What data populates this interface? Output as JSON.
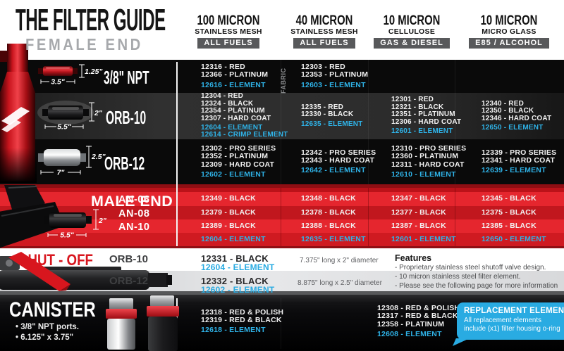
{
  "header": {
    "title": "THE FILTER GUIDE",
    "section_label": "FEMALE END",
    "columns": [
      {
        "name": "100 MICRON",
        "material": "STAINLESS MESH",
        "badge": "ALL FUELS"
      },
      {
        "name": "40 MICRON",
        "material": "STAINLESS MESH",
        "badge": "ALL FUELS"
      },
      {
        "name": "10 MICRON",
        "material": "CELLULOSE",
        "badge": "GAS & DIESEL"
      },
      {
        "name": "10 MICRON",
        "material": "MICRO GLASS",
        "badge": "E85 / ALCOHOL"
      }
    ]
  },
  "female_end": {
    "rows": [
      {
        "label": "3/8\" NPT",
        "dim_h": "1.25\"",
        "dim_l": "3.5\"",
        "cells": [
          {
            "parts": [
              "12316 - RED",
              "12366 - PLATINUM"
            ],
            "elements": [
              "12616 - ELEMENT"
            ]
          },
          {
            "note": "FABRIC",
            "parts": [
              "12303 - RED",
              "12353 - PLATINUM"
            ],
            "elements": [
              "12603 - ELEMENT"
            ]
          },
          {
            "parts": [],
            "elements": []
          },
          {
            "parts": [],
            "elements": []
          }
        ]
      },
      {
        "label": "ORB-10",
        "dim_h": "2\"",
        "dim_l": "5.5\"",
        "cells": [
          {
            "parts": [
              "12304 - RED",
              "12324 - BLACK",
              "12354 - PLATINUM",
              "12307 - HARD COAT"
            ],
            "elements": [
              "12604 - ELEMENT",
              "12614 - CRIMP ELEMENT"
            ]
          },
          {
            "parts": [
              "12335 - RED",
              "12330 - BLACK"
            ],
            "elements": [
              "12635 - ELEMENT"
            ]
          },
          {
            "parts": [
              "12301 - RED",
              "12321 - BLACK",
              "12351 - PLATINUM",
              "12306 - HARD COAT"
            ],
            "elements": [
              "12601 - ELEMENT"
            ]
          },
          {
            "parts": [
              "12340 - RED",
              "12350 - BLACK",
              "12346 - HARD COAT"
            ],
            "elements": [
              "12650 - ELEMENT"
            ]
          }
        ]
      },
      {
        "label": "ORB-12",
        "dim_h": "2.5\"",
        "dim_l": "7\"",
        "cells": [
          {
            "parts": [
              "12302 - PRO SERIES",
              "12352 - PLATINUM",
              "12309 - HARD COAT"
            ],
            "elements": [
              "12602 - ELEMENT"
            ]
          },
          {
            "parts": [
              "12342 - PRO SERIES",
              "12343 - HARD COAT"
            ],
            "elements": [
              "12642 - ELEMENT"
            ]
          },
          {
            "parts": [
              "12310 - PRO SERIES",
              "12360 - PLATINUM",
              "12311 - HARD COAT"
            ],
            "elements": [
              "12610 - ELEMENT"
            ]
          },
          {
            "parts": [
              "12339 - PRO SERIES",
              "12341 - HARD COAT"
            ],
            "elements": [
              "12639 - ELEMENT"
            ]
          }
        ]
      }
    ]
  },
  "male_end": {
    "label": "MALE END",
    "dim_h": "2\"",
    "dim_l": "5.5\"",
    "rows": [
      {
        "label": "AN-06",
        "cells": [
          "12349 - BLACK",
          "12348 - BLACK",
          "12347 - BLACK",
          "12345 - BLACK"
        ]
      },
      {
        "label": "AN-08",
        "cells": [
          "12379 - BLACK",
          "12378 - BLACK",
          "12377 - BLACK",
          "12375 - BLACK"
        ]
      },
      {
        "label": "AN-10",
        "cells": [
          "12389 - BLACK",
          "12388 - BLACK",
          "12387 - BLACK",
          "12385 - BLACK"
        ]
      }
    ],
    "element_row": [
      "12604 - ELEMENT",
      "12635 - ELEMENT",
      "12601 - ELEMENT",
      "12650 - ELEMENT"
    ]
  },
  "shut_off": {
    "label": "SHUT - OFF",
    "rows": [
      {
        "label": "ORB-10",
        "part": "12331 - BLACK",
        "element": "12604 - ELEMENT",
        "size": "7.375\" long x 2\" diameter"
      },
      {
        "label": "ORB-12",
        "part": "12332 - BLACK",
        "element": "12602 - ELEMENT",
        "size": "8.875\" long x 2.5\" diameter"
      }
    ],
    "features": {
      "title": "Features",
      "items": [
        "- Proprietary stainless steel shutoff valve design.",
        "- 10 micron stainless steel filter element.",
        "- Please see the following page for more information"
      ]
    }
  },
  "canister": {
    "label": "CANISTER",
    "bullets": [
      "• 3/8\" NPT ports.",
      "• 6.125\" x 3.75\""
    ],
    "col1": {
      "parts": [
        "12318 - RED & POLISH",
        "12319 - RED & BLACK"
      ],
      "elements": [
        "12618 - ELEMENT"
      ]
    },
    "col3": {
      "parts": [
        "12308 - RED & POLISH",
        "12317 - RED & BLACK",
        "12358 - PLATINUM"
      ],
      "elements": [
        "12608 - ELEMENT"
      ]
    },
    "replacement": {
      "title": "REPLACEMENT ELEMENTS",
      "body": "All replacement elements include (x1) filter housing o-ring"
    }
  },
  "colors": {
    "element_blue": "#29ABE2",
    "male_band_red": "#DD1B23",
    "shutoff_red": "#D8161E",
    "badge_gray": "#58595B"
  }
}
